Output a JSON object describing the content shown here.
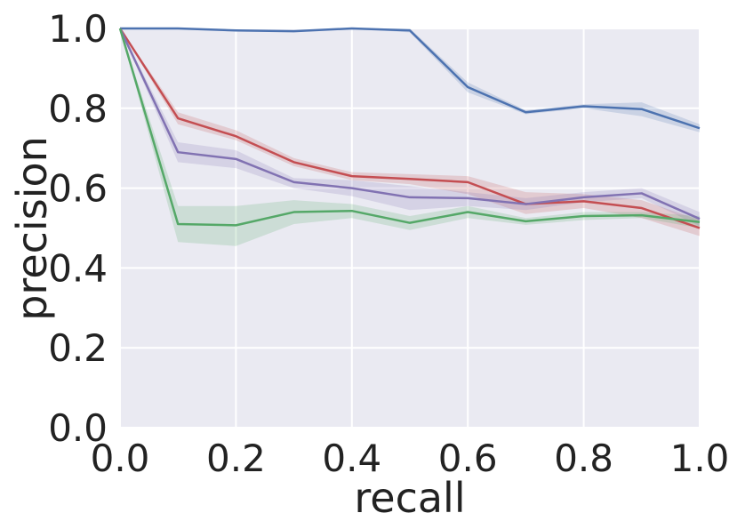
{
  "chart_data": {
    "type": "line",
    "title": "",
    "xlabel": "recall",
    "ylabel": "precision",
    "xlim": [
      0.0,
      1.0
    ],
    "ylim": [
      0.0,
      1.0
    ],
    "grid": true,
    "legend": "none",
    "background_color": "#EAEAF2",
    "grid_color": "#FFFFFF",
    "x_ticks": [
      "0.0",
      "0.2",
      "0.4",
      "0.6",
      "0.8",
      "1.0"
    ],
    "y_ticks": [
      "0.0",
      "0.2",
      "0.4",
      "0.6",
      "0.8",
      "1.0"
    ],
    "x": [
      0.0,
      0.1,
      0.2,
      0.3,
      0.4,
      0.5,
      0.6,
      0.7,
      0.8,
      0.9,
      1.0
    ],
    "series": [
      {
        "color": "#4C72B0",
        "values": [
          1.0,
          1.0,
          0.995,
          0.993,
          1.0,
          0.995,
          0.853,
          0.79,
          0.805,
          0.798,
          0.75
        ],
        "lower": [
          1.0,
          1.0,
          0.995,
          0.993,
          1.0,
          0.99,
          0.84,
          0.785,
          0.8,
          0.78,
          0.74
        ],
        "upper": [
          1.0,
          1.0,
          0.995,
          0.993,
          1.0,
          1.0,
          0.865,
          0.795,
          0.81,
          0.815,
          0.76
        ]
      },
      {
        "color": "#C44E52",
        "values": [
          1.0,
          0.775,
          0.73,
          0.665,
          0.63,
          0.623,
          0.615,
          0.56,
          0.567,
          0.55,
          0.5
        ],
        "lower": [
          1.0,
          0.76,
          0.72,
          0.655,
          0.62,
          0.61,
          0.585,
          0.535,
          0.55,
          0.525,
          0.48
        ],
        "upper": [
          1.0,
          0.79,
          0.745,
          0.675,
          0.64,
          0.635,
          0.63,
          0.59,
          0.585,
          0.57,
          0.52
        ]
      },
      {
        "color": "#8172B2",
        "values": [
          1.0,
          0.69,
          0.673,
          0.615,
          0.6,
          0.577,
          0.575,
          0.56,
          0.577,
          0.587,
          0.523
        ],
        "lower": [
          1.0,
          0.665,
          0.65,
          0.6,
          0.58,
          0.545,
          0.555,
          0.545,
          0.565,
          0.575,
          0.505
        ],
        "upper": [
          1.0,
          0.715,
          0.695,
          0.625,
          0.62,
          0.605,
          0.59,
          0.575,
          0.59,
          0.6,
          0.54
        ]
      },
      {
        "color": "#55A868",
        "values": [
          1.0,
          0.51,
          0.507,
          0.54,
          0.543,
          0.513,
          0.54,
          0.517,
          0.53,
          0.532,
          0.515
        ],
        "lower": [
          1.0,
          0.465,
          0.455,
          0.51,
          0.525,
          0.495,
          0.525,
          0.508,
          0.52,
          0.525,
          0.5
        ],
        "upper": [
          1.0,
          0.555,
          0.555,
          0.57,
          0.56,
          0.53,
          0.555,
          0.525,
          0.54,
          0.54,
          0.53
        ]
      }
    ]
  }
}
